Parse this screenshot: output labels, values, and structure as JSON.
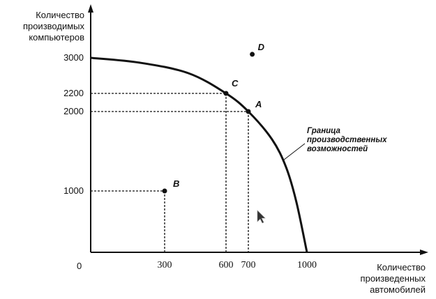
{
  "chart_data": {
    "type": "line",
    "title": "",
    "ylabel": "Количество производимых компьютеров",
    "xlabel": "Количество произведенных автомобилей",
    "origin_label": "0",
    "x_ticks": [
      300,
      600,
      700,
      1000
    ],
    "y_ticks": [
      1000,
      2000,
      2200,
      3000
    ],
    "xlim": [
      0,
      1100
    ],
    "ylim": [
      0,
      3300
    ],
    "grid": false,
    "series": [
      {
        "name": "Граница производственных возможностей",
        "points": [
          [
            0,
            3000
          ],
          [
            200,
            2890
          ],
          [
            416,
            2655
          ],
          [
            600,
            2200
          ],
          [
            700,
            2000
          ],
          [
            821,
            1650
          ],
          [
            893,
            1300
          ],
          [
            946,
            820
          ],
          [
            1000,
            0
          ]
        ]
      }
    ],
    "annotation": "Граница производственных возможностей",
    "labeled_points": [
      {
        "label": "A",
        "x": 700,
        "y": 2000,
        "guides": true
      },
      {
        "label": "B",
        "x": 300,
        "y": 1000,
        "guides": true
      },
      {
        "label": "C",
        "x": 600,
        "y": 2200,
        "guides": true
      },
      {
        "label": "D",
        "x": 720,
        "y": 3080,
        "guides": false
      }
    ],
    "colors": {
      "line": "#111111",
      "background": "#ffffff"
    }
  },
  "cursor": "arrow-cursor-icon"
}
